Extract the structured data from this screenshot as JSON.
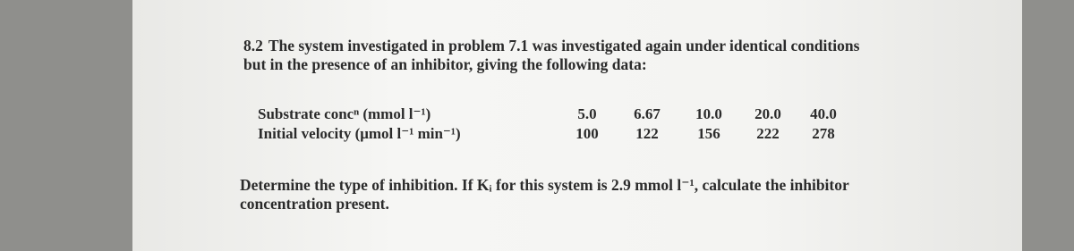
{
  "problem": {
    "number": "8.2",
    "text": "The system investigated in problem 7.1 was investigated again under identical conditions but in the presence of an inhibitor, giving the following data:"
  },
  "table": {
    "rows": [
      [
        "Substrate concⁿ (mmol l⁻¹)",
        "5.0",
        "6.67",
        "10.0",
        "20.0",
        "40.0"
      ],
      [
        "Initial velocity (μmol l⁻¹ min⁻¹)",
        "100",
        "122",
        "156",
        "222",
        "278"
      ]
    ]
  },
  "question": "Determine the type of inhibition. If Kᵢ for this system is 2.9 mmol l⁻¹, calculate the inhibitor concentration present."
}
